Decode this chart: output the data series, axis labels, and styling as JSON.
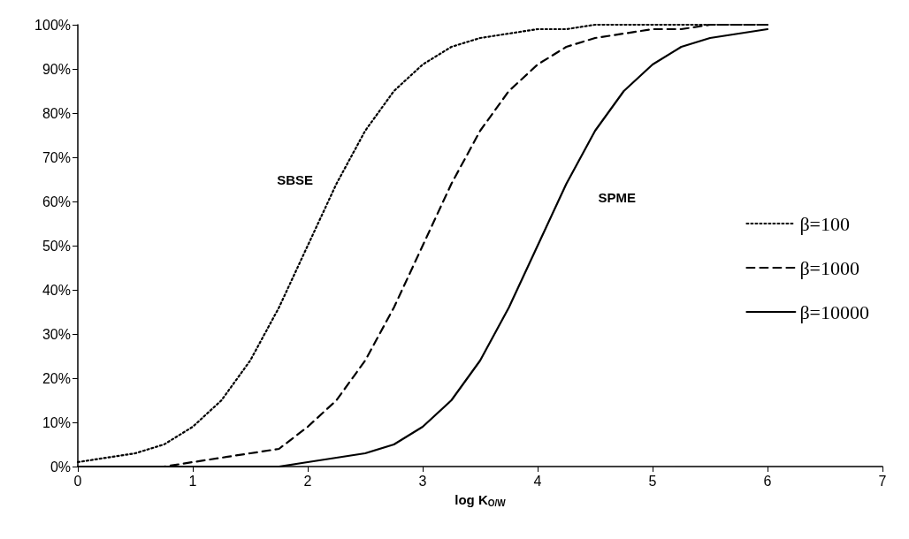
{
  "chart_data": {
    "type": "line",
    "xlabel": "log K$_{O/W}$",
    "xlim": [
      0,
      7
    ],
    "xticks": [
      0,
      1,
      2,
      3,
      4,
      5,
      6,
      7
    ],
    "ylim": [
      0,
      100
    ],
    "yticks": [
      {
        "value": 0,
        "label": "0%"
      },
      {
        "value": 10,
        "label": "10%"
      },
      {
        "value": 20,
        "label": "20%"
      },
      {
        "value": 30,
        "label": "30%"
      },
      {
        "value": 40,
        "label": "40%"
      },
      {
        "value": 50,
        "label": "50%"
      },
      {
        "value": 60,
        "label": "60%"
      },
      {
        "value": 70,
        "label": "70%"
      },
      {
        "value": 80,
        "label": "80%"
      },
      {
        "value": 90,
        "label": "90%"
      },
      {
        "value": 100,
        "label": "100%"
      }
    ],
    "grid": false,
    "legend": "right",
    "marker": "none",
    "x": [
      0,
      0.25,
      0.5,
      0.75,
      1,
      1.25,
      1.5,
      1.75,
      2,
      2.25,
      2.5,
      2.75,
      3,
      3.25,
      3.5,
      3.75,
      4,
      4.25,
      4.5,
      4.75,
      5,
      5.25,
      5.5,
      5.75,
      6
    ],
    "series": [
      {
        "name": "β=100",
        "color": "#000000",
        "line_style": "dotted",
        "values": [
          1,
          2,
          3,
          5,
          9,
          15,
          24,
          36,
          50,
          64,
          76,
          85,
          91,
          95,
          97,
          98,
          99,
          99,
          100,
          100,
          100,
          100,
          100,
          100,
          100
        ]
      },
      {
        "name": "β=1000",
        "color": "#000000",
        "line_style": "dashed",
        "values": [
          0,
          0,
          0,
          0,
          1,
          2,
          3,
          4,
          9,
          15,
          24,
          36,
          50,
          64,
          76,
          85,
          91,
          95,
          97,
          98,
          99,
          99,
          100,
          100,
          100
        ]
      },
      {
        "name": "β=10000",
        "color": "#000000",
        "line_style": "solid",
        "values": [
          0,
          0,
          0,
          0,
          0,
          0,
          0,
          0,
          1,
          2,
          3,
          5,
          9,
          15,
          24,
          36,
          50,
          64,
          76,
          85,
          91,
          95,
          97,
          98,
          99
        ]
      }
    ],
    "annotations": [
      "SBSE",
      "SPME"
    ]
  }
}
